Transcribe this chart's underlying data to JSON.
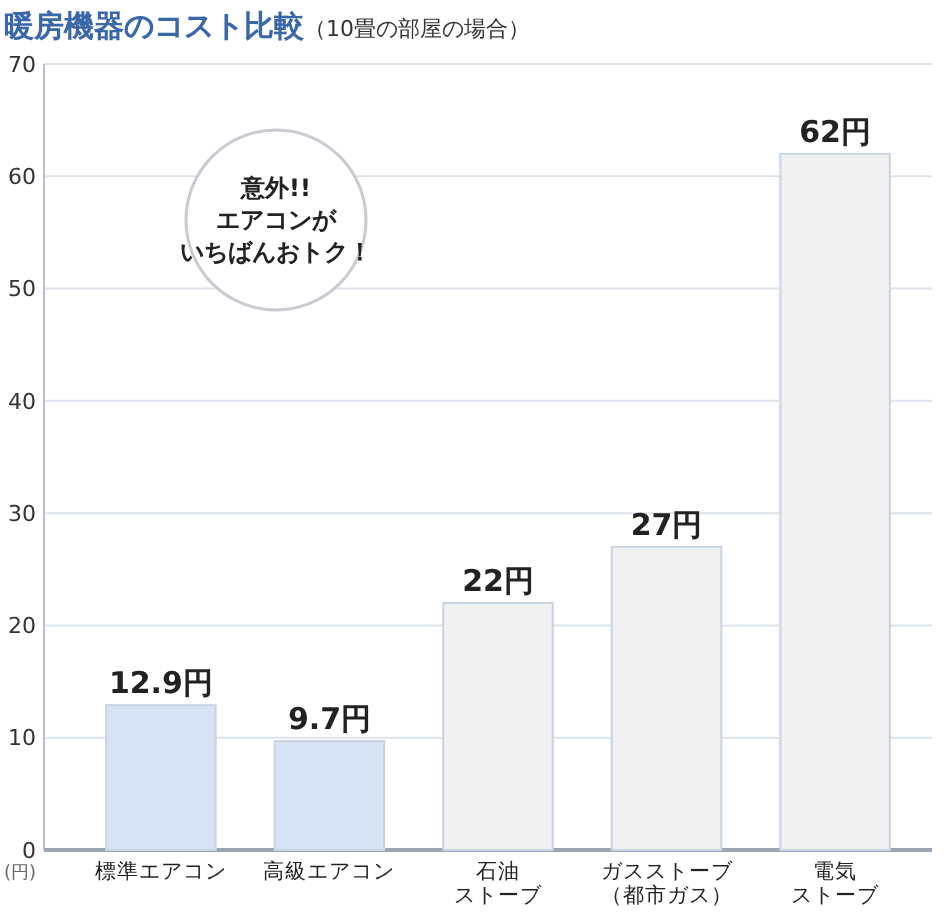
{
  "chart_data": {
    "type": "bar",
    "title": "暖房機器のコスト比較",
    "subtitle": "（10畳の部屋の場合）",
    "ylabel": "(円)",
    "categories": [
      "標準エアコン",
      "高級エアコン",
      "石油ストーブ",
      "ガスストーブ（都市ガス）",
      "電気ストーブ"
    ],
    "values": [
      12.9,
      9.7,
      22,
      27,
      62
    ],
    "colors": [
      "#d5e3f5",
      "#d5e3f5",
      "#f1f1f1",
      "#f1f1f1",
      "#f1f1f1"
    ],
    "value_labels": [
      "12.9円",
      "9.7円",
      "22円",
      "27円",
      "62円"
    ],
    "ylim": [
      0,
      70
    ],
    "yticks": [
      0,
      10,
      20,
      30,
      40,
      50,
      60,
      70
    ],
    "grid": "y",
    "annotations": [
      "意外!!エアコンがいちばんおトク！"
    ]
  }
}
